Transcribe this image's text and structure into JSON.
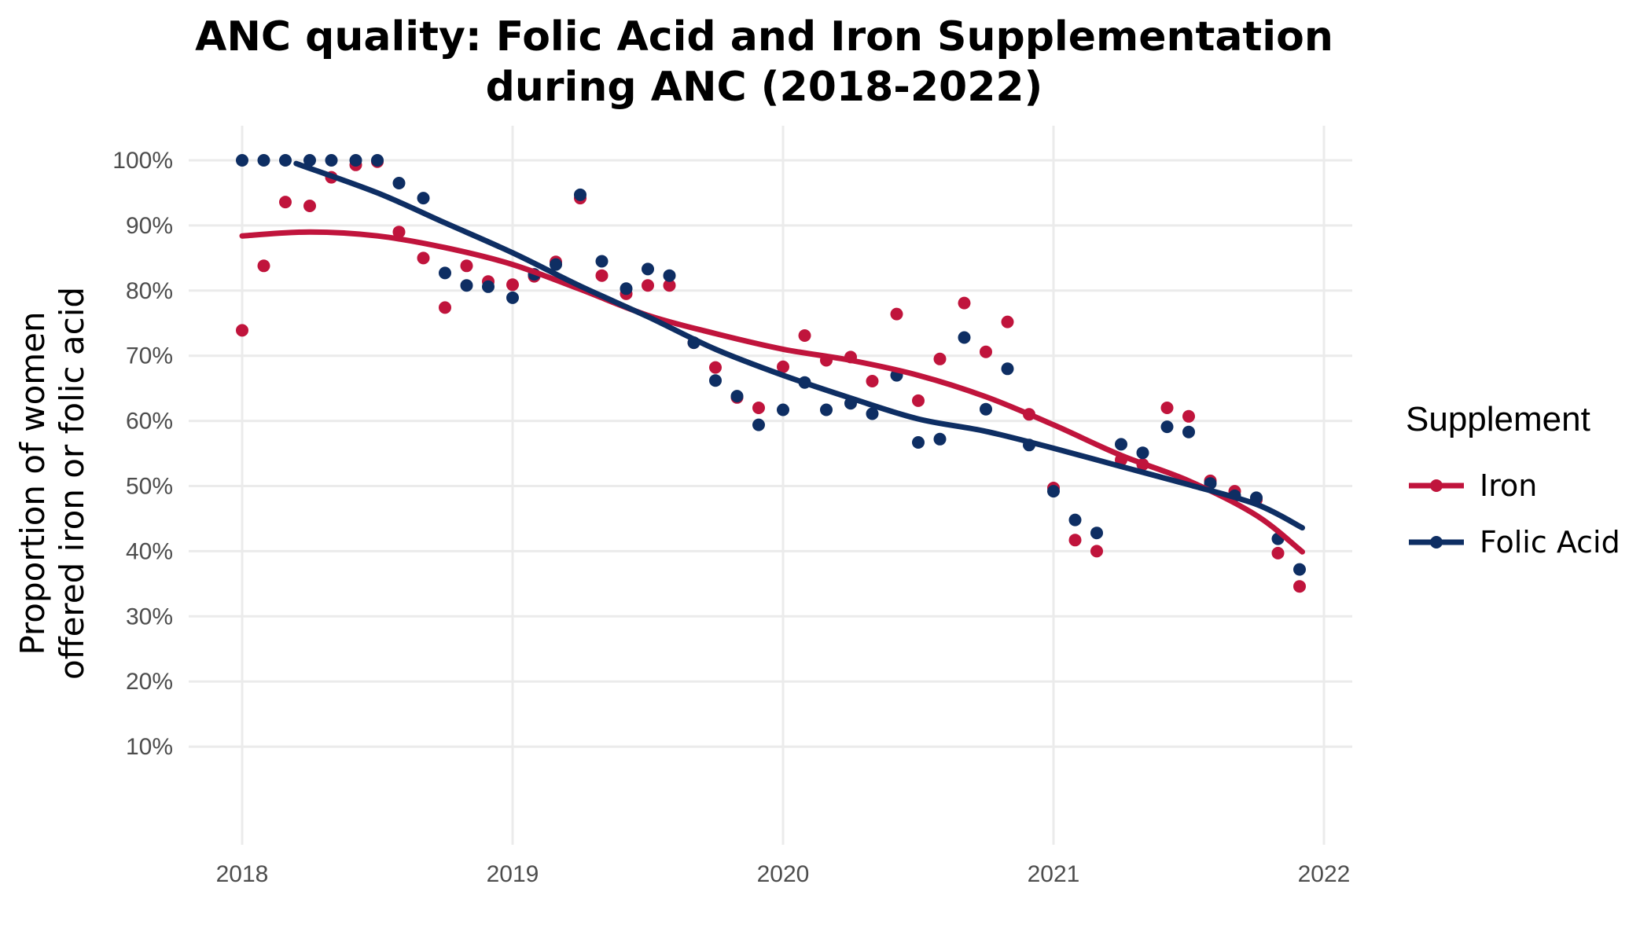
{
  "chart_data": {
    "type": "scatter",
    "title_lines": [
      "ANC quality: Folic Acid and Iron Supplementation",
      "during ANC (2018-2022)"
    ],
    "ylabel_lines": [
      "Proportion of women",
      "offered iron or folic acid"
    ],
    "xlabel": "",
    "x_ticks": [
      2018,
      2019,
      2020,
      2021,
      2022
    ],
    "x_tick_labels": [
      "2018",
      "2019",
      "2020",
      "2021",
      "2022"
    ],
    "y_ticks": [
      10,
      20,
      30,
      40,
      50,
      60,
      70,
      80,
      90,
      100
    ],
    "y_tick_labels": [
      "10%",
      "20%",
      "30%",
      "40%",
      "50%",
      "60%",
      "70%",
      "80%",
      "90%",
      "100%"
    ],
    "xlim": [
      2017.8,
      2022.1
    ],
    "ylim": [
      0,
      105
    ],
    "grid": true,
    "legend": {
      "title": "Supplement",
      "position": "right"
    },
    "series": [
      {
        "name": "Iron",
        "color": "#c0143c",
        "points": [
          [
            2018.0,
            73.9
          ],
          [
            2018.08,
            83.8
          ],
          [
            2018.16,
            93.6
          ],
          [
            2018.25,
            93.0
          ],
          [
            2018.33,
            97.4
          ],
          [
            2018.42,
            99.3
          ],
          [
            2018.5,
            99.8
          ],
          [
            2018.58,
            89.0
          ],
          [
            2018.67,
            85.0
          ],
          [
            2018.75,
            77.4
          ],
          [
            2018.83,
            83.8
          ],
          [
            2018.91,
            81.4
          ],
          [
            2019.0,
            80.9
          ],
          [
            2019.08,
            82.2
          ],
          [
            2019.16,
            84.4
          ],
          [
            2019.25,
            94.2
          ],
          [
            2019.33,
            82.3
          ],
          [
            2019.42,
            79.5
          ],
          [
            2019.5,
            80.8
          ],
          [
            2019.58,
            80.8
          ],
          [
            2019.67,
            72.0
          ],
          [
            2019.75,
            68.2
          ],
          [
            2019.83,
            63.6
          ],
          [
            2019.91,
            62.0
          ],
          [
            2020.0,
            68.3
          ],
          [
            2020.08,
            73.1
          ],
          [
            2020.16,
            69.3
          ],
          [
            2020.25,
            69.8
          ],
          [
            2020.33,
            66.1
          ],
          [
            2020.42,
            76.4
          ],
          [
            2020.5,
            63.1
          ],
          [
            2020.58,
            69.5
          ],
          [
            2020.67,
            78.1
          ],
          [
            2020.75,
            70.6
          ],
          [
            2020.83,
            75.2
          ],
          [
            2020.91,
            61.0
          ],
          [
            2021.0,
            49.7
          ],
          [
            2021.08,
            41.7
          ],
          [
            2021.16,
            40.0
          ],
          [
            2021.25,
            54.0
          ],
          [
            2021.33,
            53.3
          ],
          [
            2021.42,
            62.0
          ],
          [
            2021.5,
            60.7
          ],
          [
            2021.58,
            50.8
          ],
          [
            2021.67,
            49.2
          ],
          [
            2021.75,
            47.9
          ],
          [
            2021.83,
            39.7
          ],
          [
            2021.91,
            34.6
          ]
        ],
        "trend": [
          [
            2018.0,
            88.4
          ],
          [
            2018.25,
            89.0
          ],
          [
            2018.5,
            88.4
          ],
          [
            2018.75,
            86.6
          ],
          [
            2019.0,
            84.0
          ],
          [
            2019.25,
            80.2
          ],
          [
            2019.5,
            76.2
          ],
          [
            2019.75,
            73.4
          ],
          [
            2020.0,
            71.0
          ],
          [
            2020.25,
            69.3
          ],
          [
            2020.5,
            67.0
          ],
          [
            2020.75,
            63.7
          ],
          [
            2021.0,
            59.4
          ],
          [
            2021.25,
            54.7
          ],
          [
            2021.5,
            50.8
          ],
          [
            2021.75,
            45.5
          ],
          [
            2021.92,
            39.9
          ]
        ]
      },
      {
        "name": "Folic Acid",
        "color": "#0e2e63",
        "points": [
          [
            2018.0,
            100.0
          ],
          [
            2018.08,
            100.0
          ],
          [
            2018.16,
            100.0
          ],
          [
            2018.25,
            100.0
          ],
          [
            2018.33,
            100.0
          ],
          [
            2018.42,
            100.0
          ],
          [
            2018.5,
            100.0
          ],
          [
            2018.58,
            96.5
          ],
          [
            2018.67,
            94.2
          ],
          [
            2018.75,
            82.7
          ],
          [
            2018.83,
            80.8
          ],
          [
            2018.91,
            80.6
          ],
          [
            2019.0,
            78.9
          ],
          [
            2019.08,
            82.5
          ],
          [
            2019.16,
            84.0
          ],
          [
            2019.25,
            94.7
          ],
          [
            2019.33,
            84.5
          ],
          [
            2019.42,
            80.3
          ],
          [
            2019.5,
            83.3
          ],
          [
            2019.58,
            82.3
          ],
          [
            2019.67,
            72.0
          ],
          [
            2019.75,
            66.2
          ],
          [
            2019.83,
            63.8
          ],
          [
            2019.91,
            59.4
          ],
          [
            2020.0,
            61.7
          ],
          [
            2020.08,
            65.9
          ],
          [
            2020.16,
            61.7
          ],
          [
            2020.25,
            62.7
          ],
          [
            2020.33,
            61.1
          ],
          [
            2020.42,
            67.0
          ],
          [
            2020.5,
            56.7
          ],
          [
            2020.58,
            57.2
          ],
          [
            2020.67,
            72.8
          ],
          [
            2020.75,
            61.8
          ],
          [
            2020.83,
            68.0
          ],
          [
            2020.91,
            56.3
          ],
          [
            2021.0,
            49.2
          ],
          [
            2021.08,
            44.8
          ],
          [
            2021.16,
            42.8
          ],
          [
            2021.25,
            56.4
          ],
          [
            2021.33,
            55.1
          ],
          [
            2021.42,
            59.1
          ],
          [
            2021.5,
            58.3
          ],
          [
            2021.58,
            50.4
          ],
          [
            2021.67,
            48.5
          ],
          [
            2021.75,
            48.2
          ],
          [
            2021.83,
            41.9
          ],
          [
            2021.91,
            37.2
          ]
        ],
        "trend": [
          [
            2018.2,
            99.5
          ],
          [
            2018.5,
            95.0
          ],
          [
            2018.75,
            90.4
          ],
          [
            2019.0,
            85.8
          ],
          [
            2019.25,
            80.7
          ],
          [
            2019.5,
            76.0
          ],
          [
            2019.75,
            71.0
          ],
          [
            2020.0,
            67.0
          ],
          [
            2020.25,
            63.5
          ],
          [
            2020.5,
            60.3
          ],
          [
            2020.75,
            58.4
          ],
          [
            2021.0,
            55.8
          ],
          [
            2021.25,
            53.0
          ],
          [
            2021.5,
            50.2
          ],
          [
            2021.75,
            47.2
          ],
          [
            2021.92,
            43.6
          ]
        ]
      }
    ]
  }
}
